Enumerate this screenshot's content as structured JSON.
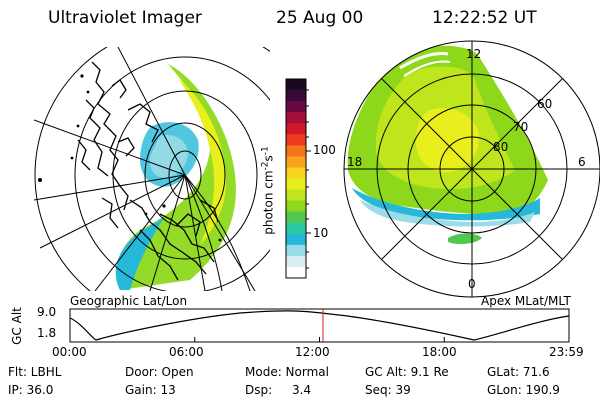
{
  "header": {
    "instrument": "Ultraviolet Imager",
    "date": "25 Aug 00",
    "time": "12:22:52 UT"
  },
  "left_panel": {
    "caption": "Geographic Lat/Lon"
  },
  "right_panel": {
    "caption": "Apex MLat/MLT",
    "mlt_labels": {
      "top": "12",
      "bottom": "0",
      "left": "18",
      "right": "6"
    },
    "lat_labels": [
      "60",
      "70",
      "80"
    ]
  },
  "colorbar": {
    "unit_label": "photon cm",
    "unit_sup1": "-2",
    "unit_mid": "s",
    "unit_sup2": "-1",
    "ticks": [
      "100",
      "10"
    ],
    "colors": [
      "#1a0820",
      "#3a0838",
      "#6a0840",
      "#a0103a",
      "#d01828",
      "#ee3a1c",
      "#f4741c",
      "#f7a41c",
      "#f8d41c",
      "#e8ef1c",
      "#bfe61c",
      "#8ed81c",
      "#52c850",
      "#2cc8a0",
      "#26b8d8",
      "#9adce8",
      "#d8eef2",
      "#ffffff"
    ]
  },
  "altitude_plot": {
    "ylabel": "GC Alt",
    "yticks": [
      "9.0",
      "1.8"
    ],
    "xticks": [
      "00:00",
      "06:00",
      "12:00",
      "18:00",
      "23:59"
    ],
    "marker_time": "12:22",
    "marker_color": "#d02020"
  },
  "footer": {
    "filter": "Flt: LBHL",
    "ip": "IP: 36.0",
    "door": "Door: Open",
    "gain": "Gain: 13",
    "mode": "Mode: Normal",
    "dsp_label": "Dsp:",
    "dsp_value": "3.4",
    "gc_alt": "GC Alt: 9.1 Re",
    "seq": "Seq: 39",
    "glat": "GLat: 71.6",
    "glon": "GLon: 190.9"
  }
}
